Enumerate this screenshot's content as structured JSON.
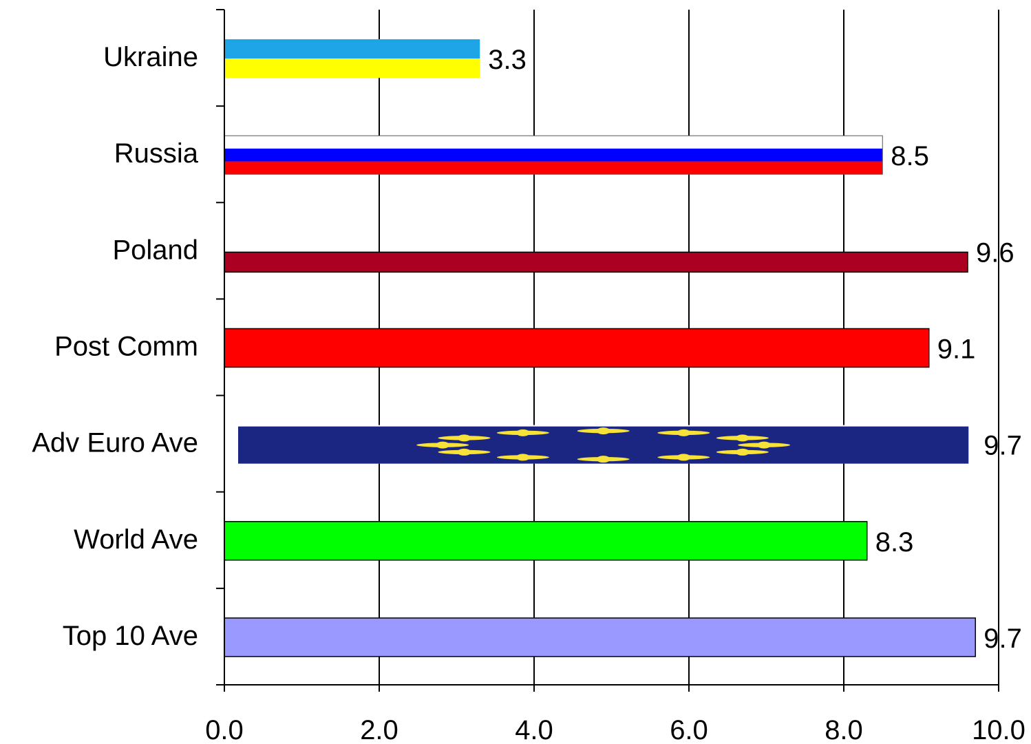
{
  "chart_data": {
    "type": "bar",
    "orientation": "horizontal",
    "categories": [
      "Ukraine",
      "Russia",
      "Poland",
      "Post Comm",
      "Adv Euro Ave",
      "World Ave",
      "Top 10 Ave"
    ],
    "values": [
      3.3,
      8.5,
      9.6,
      9.1,
      9.7,
      8.3,
      9.7
    ],
    "value_labels": [
      "3.3",
      "8.5",
      "9.6",
      "9.1",
      "9.7",
      "8.3",
      "9.7"
    ],
    "xlim": [
      0,
      10
    ],
    "xticks": [
      "0.0",
      "2.0",
      "4.0",
      "6.0",
      "8.0",
      "10.0"
    ],
    "grid": "vertical",
    "legend": "none",
    "bar_styles": [
      {
        "kind": "flag-bands",
        "colors": [
          "#1ea5e8",
          "#ffff00"
        ]
      },
      {
        "kind": "flag-bands",
        "colors": [
          "#ffffff",
          "#0000ff",
          "#ff0000"
        ]
      },
      {
        "kind": "solid",
        "color": "#ac0022"
      },
      {
        "kind": "solid",
        "color": "#ff0000"
      },
      {
        "kind": "eu-flag",
        "color": "#1a2682",
        "star_color": "#f7e23a"
      },
      {
        "kind": "solid",
        "color": "#00ff00"
      },
      {
        "kind": "solid",
        "color": "#9999ff"
      }
    ]
  }
}
